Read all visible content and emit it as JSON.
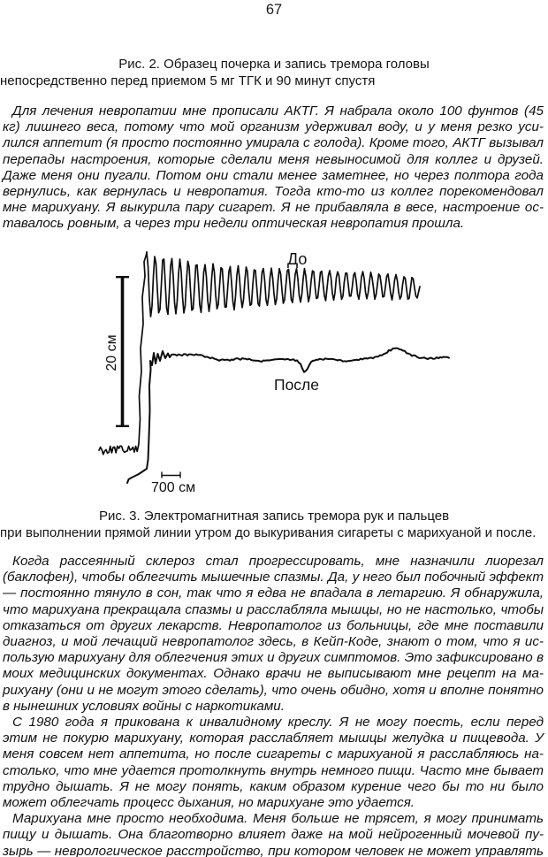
{
  "page": {
    "number": "67",
    "fig2_caption": [
      "Рис. 2. Образец почерка и запись тремора головы",
      "непосредственно перед приемом 5 мг ТГК и 90 минут спустя"
    ],
    "fig3_caption": [
      "Рис. 3. Электромагнитная запись тремора рук и пальцев",
      "при выполнении прямой линии утром до выкуривания сигареты с марихуаной и после."
    ]
  },
  "figure": {
    "before_label": "До",
    "after_label": "После",
    "vertical_scale": "20 см",
    "horizontal_scale": "700 см",
    "ink_color": "#0d0d0d"
  },
  "paragraphs": [
    {
      "justify_last": false,
      "lines": [
        "Для лечения невропатии мне прописали АКТГ. Я набрала около 100 фунтов (45",
        "кг) лишнего веса, потому что мой организм удерживал воду, и у меня резко уси-",
        "лился аппетит (я просто постоянно умирала с голода). Кроме того, АКТГ вызывал",
        "перепады настроения, которые сделали меня невыносимой для коллег и друзей.",
        "Даже меня они пугали. Потом они стали менее заметнее, но через полтора года",
        "вернулись, как вернулась и невропатия. Тогда кто-то из коллег порекомендовал",
        "мне марихуану. Я выкурила пару сигарет. Я не прибавляла в весе, настроение ос-",
        "тавалось ровным, а через три недели оптическая невропатия прошла."
      ]
    },
    {
      "justify_last": false,
      "lines": [
        "Когда рассеянный склероз стал прогрессировать, мне назначили лиорезал",
        "(баклофен), чтобы облегчить мышечные спазмы. Да, у него был побочный эффект",
        "— постоянно тянуло в сон, так что я едва не впадала в летаргию. Я обнаружила,",
        "что марихуана прекращала спазмы и расслабляла мышцы, но не настолько, чтобы",
        "отказаться от других лекарств. Невропатолог из больницы, где мне поставили",
        "диагноз, и мой лечащий невропатолог здесь, в Кейп-Коде, знают о том, что я ис-",
        "пользую марихуану для облегчения этих и других симптомов. Это зафиксировано в",
        "моих медицинских документах. Однако врачи не выписывают мне рецепт на ма-",
        "рихуану (они и не могут этого сделать), что очень обидно, хотя и вполне понятно",
        "в нынешних условиях войны с наркотиками."
      ]
    },
    {
      "justify_last": false,
      "lines": [
        "С 1980 года я прикована к инвалидному креслу. Я не могу поесть, если перед",
        "этим не покурю марихуану, которая расслабляет мышцы желудка и пищевода. У",
        "меня совсем нет аппетита, но после сигареты с марихуаной я расслабляюсь на-",
        "столько, что мне удается протолкнуть внутрь немного пищи. Часто мне бывает",
        "трудно дышать. Я не могу понять, каким образом курение чего бы то ни было",
        "может облегчать процесс дыхания, но марихуане это удается."
      ]
    },
    {
      "justify_last": true,
      "lines": [
        "Марихуана мне просто необходима. Меня больше не трясет, я могу принимать",
        "пищу и дышать. Она благотворно влияет даже на мой нейрогенный мочевой пу-",
        "зырь — неврологическое расстройство, при котором человек не может управлять"
      ]
    }
  ]
}
